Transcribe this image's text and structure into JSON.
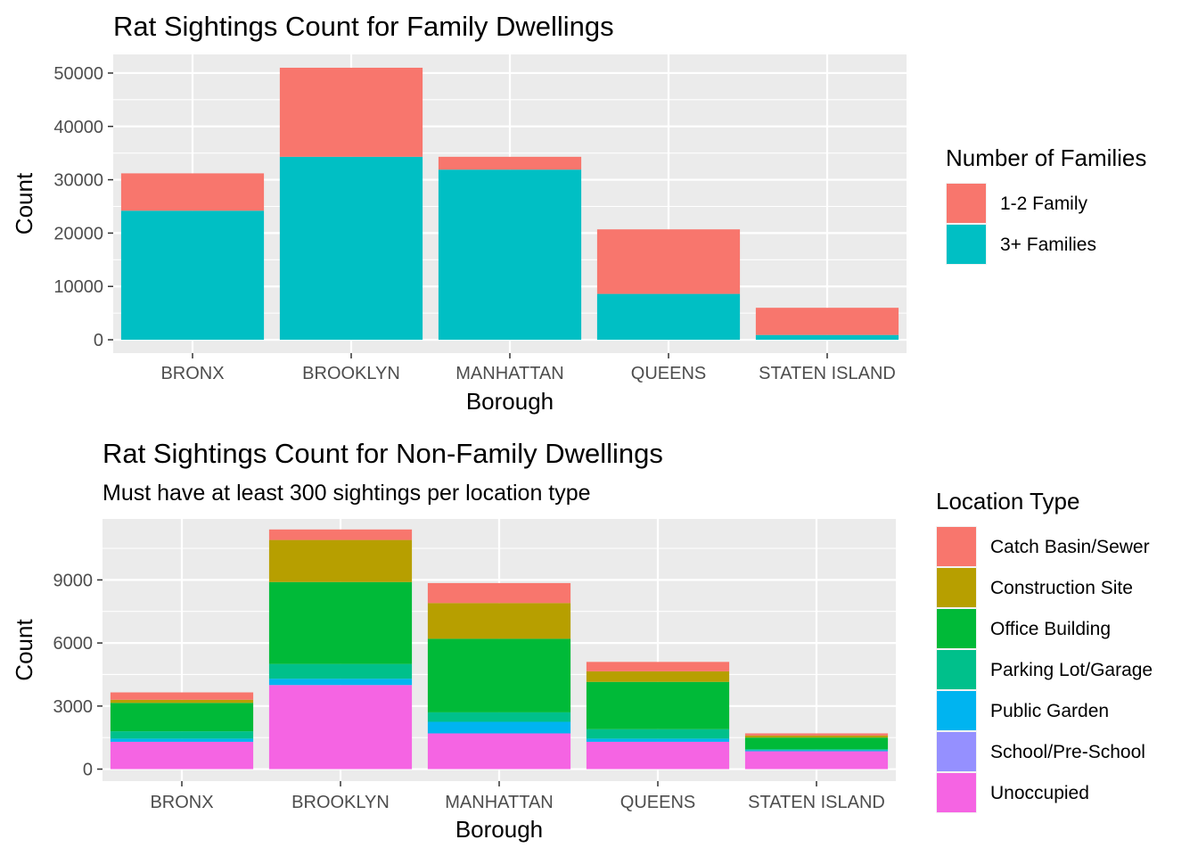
{
  "chart_data": [
    {
      "type": "bar",
      "stacked": true,
      "title": "Rat Sightings Count for Family Dwellings",
      "subtitle": "",
      "xlabel": "Borough",
      "ylabel": "Count",
      "ylim": [
        -2500,
        53500
      ],
      "yticks": [
        0,
        10000,
        20000,
        30000,
        40000,
        50000
      ],
      "categories": [
        "BRONX",
        "BROOKLYN",
        "MANHATTAN",
        "QUEENS",
        "STATEN ISLAND"
      ],
      "legend_title": "Number of Families",
      "legend_position": "right",
      "grid": true,
      "series": [
        {
          "name": "1-2 Family",
          "color": "#F8766D",
          "values": [
            7000,
            16700,
            2400,
            12100,
            5100
          ]
        },
        {
          "name": "3+ Families",
          "color": "#00BFC4",
          "values": [
            24200,
            34300,
            31900,
            8600,
            900
          ]
        }
      ]
    },
    {
      "type": "bar",
      "stacked": true,
      "title": "Rat Sightings Count for Non-Family Dwellings",
      "subtitle": "Must have at least 300 sightings per location type",
      "xlabel": "Borough",
      "ylabel": "Count",
      "ylim": [
        -570,
        11900
      ],
      "yticks": [
        0,
        3000,
        6000,
        9000
      ],
      "categories": [
        "BRONX",
        "BROOKLYN",
        "MANHATTAN",
        "QUEENS",
        "STATEN ISLAND"
      ],
      "legend_title": "Location Type",
      "legend_position": "right",
      "grid": true,
      "series": [
        {
          "name": "Catch Basin/Sewer",
          "color": "#F8766D",
          "values": [
            350,
            500,
            950,
            450,
            100
          ]
        },
        {
          "name": "Construction Site",
          "color": "#B79F00",
          "values": [
            150,
            2000,
            1700,
            500,
            100
          ]
        },
        {
          "name": "Office Building",
          "color": "#00BA38",
          "values": [
            1350,
            3900,
            3500,
            2250,
            550
          ]
        },
        {
          "name": "Parking Lot/Garage",
          "color": "#00C08B",
          "values": [
            350,
            700,
            450,
            450,
            50
          ]
        },
        {
          "name": "Public Garden",
          "color": "#00B4F0",
          "values": [
            150,
            300,
            550,
            150,
            50
          ]
        },
        {
          "name": "School/Pre-School",
          "color": "#9590FF",
          "values": [
            0,
            0,
            0,
            0,
            0
          ]
        },
        {
          "name": "Unoccupied",
          "color": "#F564E3",
          "values": [
            1300,
            4000,
            1700,
            1300,
            850
          ]
        }
      ]
    }
  ]
}
